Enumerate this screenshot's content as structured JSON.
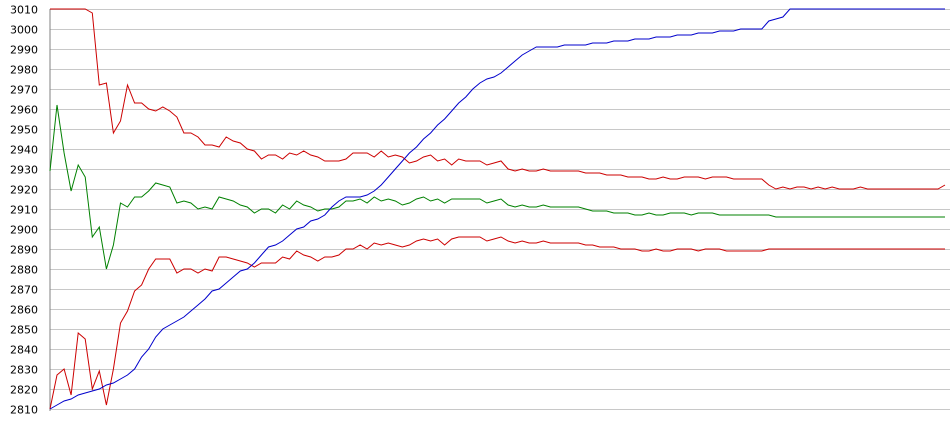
{
  "chart_data": {
    "type": "line",
    "title": "",
    "xlabel": "",
    "ylabel": "",
    "ylim": [
      2810,
      3010
    ],
    "yticks": [
      2810,
      2820,
      2830,
      2840,
      2850,
      2860,
      2870,
      2880,
      2890,
      2900,
      2910,
      2920,
      2930,
      2940,
      2950,
      2960,
      2970,
      2980,
      2990,
      3000,
      3010
    ],
    "grid": true,
    "legend": "none",
    "x": [
      0,
      1,
      2,
      3,
      4,
      5,
      6,
      7,
      8,
      9,
      10,
      11,
      12,
      13,
      14,
      15,
      16,
      17,
      18,
      19,
      20,
      21,
      22,
      23,
      24,
      25,
      26,
      27,
      28,
      29,
      30,
      31,
      32,
      33,
      34,
      35,
      36,
      37,
      38,
      39,
      40,
      41,
      42,
      43,
      44,
      45,
      46,
      47,
      48,
      49,
      50,
      51,
      52,
      53,
      54,
      55,
      56,
      57,
      58,
      59,
      60,
      61,
      62,
      63,
      64,
      65,
      66,
      67,
      68,
      69,
      70,
      71,
      72,
      73,
      74,
      75,
      76,
      77,
      78,
      79,
      80,
      81,
      82,
      83,
      84,
      85,
      86,
      87,
      88,
      89,
      90,
      91,
      92,
      93,
      94,
      95,
      96,
      97,
      98,
      99,
      100,
      101,
      102,
      103,
      104,
      105,
      106,
      107,
      108,
      109,
      110,
      111,
      112,
      113,
      114,
      115,
      116,
      117,
      118,
      119,
      120,
      121,
      122,
      123,
      124,
      125,
      126,
      127
    ],
    "series": [
      {
        "color": "#cc0000",
        "values": [
          3010,
          3010,
          3010,
          3010,
          3010,
          3010,
          3008,
          2972,
          2973,
          2948,
          2954,
          2972,
          2963,
          2963,
          2960,
          2959,
          2961,
          2959,
          2956,
          2948,
          2948,
          2946,
          2942,
          2942,
          2941,
          2946,
          2944,
          2943,
          2940,
          2939,
          2935,
          2937,
          2937,
          2935,
          2938,
          2937,
          2939,
          2937,
          2936,
          2934,
          2934,
          2934,
          2935,
          2938,
          2938,
          2938,
          2936,
          2939,
          2936,
          2937,
          2936,
          2933,
          2934,
          2936,
          2937,
          2934,
          2935,
          2932,
          2935,
          2934,
          2934,
          2934,
          2932,
          2933,
          2934,
          2930,
          2929,
          2930,
          2929,
          2929,
          2930,
          2929,
          2929,
          2929,
          2929,
          2929,
          2928,
          2928,
          2928,
          2927,
          2927,
          2927,
          2926,
          2926,
          2926,
          2925,
          2925,
          2926,
          2925,
          2925,
          2926,
          2926,
          2926,
          2925,
          2926,
          2926,
          2926,
          2925,
          2925,
          2925,
          2925,
          2925,
          2922,
          2920,
          2921,
          2920,
          2921,
          2921,
          2920,
          2921,
          2920,
          2921,
          2920,
          2920,
          2920,
          2921,
          2920,
          2920,
          2920,
          2920,
          2920,
          2920,
          2920,
          2920,
          2920,
          2920,
          2920,
          2922
        ]
      },
      {
        "color": "#008000",
        "values": [
          2929,
          2962,
          2938,
          2919,
          2932,
          2926,
          2896,
          2901,
          2880,
          2892,
          2913,
          2911,
          2916,
          2916,
          2919,
          2923,
          2922,
          2921,
          2913,
          2914,
          2913,
          2910,
          2911,
          2910,
          2916,
          2915,
          2914,
          2912,
          2911,
          2908,
          2910,
          2910,
          2908,
          2912,
          2910,
          2914,
          2912,
          2911,
          2909,
          2910,
          2910,
          2911,
          2914,
          2914,
          2915,
          2913,
          2916,
          2914,
          2915,
          2914,
          2912,
          2913,
          2915,
          2916,
          2914,
          2915,
          2913,
          2915,
          2915,
          2915,
          2915,
          2915,
          2913,
          2914,
          2915,
          2912,
          2911,
          2912,
          2911,
          2911,
          2912,
          2911,
          2911,
          2911,
          2911,
          2911,
          2910,
          2909,
          2909,
          2909,
          2908,
          2908,
          2908,
          2907,
          2907,
          2908,
          2907,
          2907,
          2908,
          2908,
          2908,
          2907,
          2908,
          2908,
          2908,
          2907,
          2907,
          2907,
          2907,
          2907,
          2907,
          2907,
          2907,
          2906,
          2906,
          2906,
          2906,
          2906,
          2906,
          2906,
          2906,
          2906,
          2906,
          2906,
          2906,
          2906,
          2906,
          2906,
          2906,
          2906,
          2906,
          2906,
          2906,
          2906,
          2906,
          2906,
          2906,
          2906
        ]
      },
      {
        "color": "#cc0000",
        "values": [
          2810,
          2827,
          2830,
          2817,
          2848,
          2845,
          2820,
          2829,
          2812,
          2830,
          2853,
          2859,
          2869,
          2872,
          2880,
          2885,
          2885,
          2885,
          2878,
          2880,
          2880,
          2878,
          2880,
          2879,
          2886,
          2886,
          2885,
          2884,
          2883,
          2881,
          2883,
          2883,
          2883,
          2886,
          2885,
          2889,
          2887,
          2886,
          2884,
          2886,
          2886,
          2887,
          2890,
          2890,
          2892,
          2890,
          2893,
          2892,
          2893,
          2892,
          2891,
          2892,
          2894,
          2895,
          2894,
          2895,
          2892,
          2895,
          2896,
          2896,
          2896,
          2896,
          2894,
          2895,
          2896,
          2894,
          2893,
          2894,
          2893,
          2893,
          2894,
          2893,
          2893,
          2893,
          2893,
          2893,
          2892,
          2892,
          2891,
          2891,
          2891,
          2890,
          2890,
          2890,
          2889,
          2889,
          2890,
          2889,
          2889,
          2890,
          2890,
          2890,
          2889,
          2890,
          2890,
          2890,
          2889,
          2889,
          2889,
          2889,
          2889,
          2889,
          2890,
          2890,
          2890,
          2890,
          2890,
          2890,
          2890,
          2890,
          2890,
          2890,
          2890,
          2890,
          2890,
          2890,
          2890,
          2890,
          2890,
          2890,
          2890,
          2890,
          2890,
          2890,
          2890,
          2890,
          2890,
          2890
        ]
      },
      {
        "color": "#0000cc",
        "values": [
          2810,
          2812,
          2814,
          2815,
          2817,
          2818,
          2819,
          2820,
          2822,
          2823,
          2825,
          2827,
          2830,
          2836,
          2840,
          2846,
          2850,
          2852,
          2854,
          2856,
          2859,
          2862,
          2865,
          2869,
          2870,
          2873,
          2876,
          2879,
          2880,
          2883,
          2887,
          2891,
          2892,
          2894,
          2897,
          2900,
          2901,
          2904,
          2905,
          2907,
          2911,
          2914,
          2916,
          2916,
          2916,
          2917,
          2919,
          2922,
          2926,
          2930,
          2934,
          2938,
          2941,
          2945,
          2948,
          2952,
          2955,
          2959,
          2963,
          2966,
          2970,
          2973,
          2975,
          2976,
          2978,
          2981,
          2984,
          2987,
          2989,
          2991,
          2991,
          2991,
          2991,
          2992,
          2992,
          2992,
          2992,
          2993,
          2993,
          2993,
          2994,
          2994,
          2994,
          2995,
          2995,
          2995,
          2996,
          2996,
          2996,
          2997,
          2997,
          2997,
          2998,
          2998,
          2998,
          2999,
          2999,
          2999,
          3000,
          3000,
          3000,
          3000,
          3004,
          3005,
          3006,
          3010,
          3010,
          3010,
          3010,
          3010,
          3010,
          3010,
          3010,
          3010,
          3010,
          3010,
          3010,
          3010,
          3010,
          3010,
          3010,
          3010,
          3010,
          3010,
          3010,
          3010,
          3010,
          3010
        ]
      }
    ]
  }
}
